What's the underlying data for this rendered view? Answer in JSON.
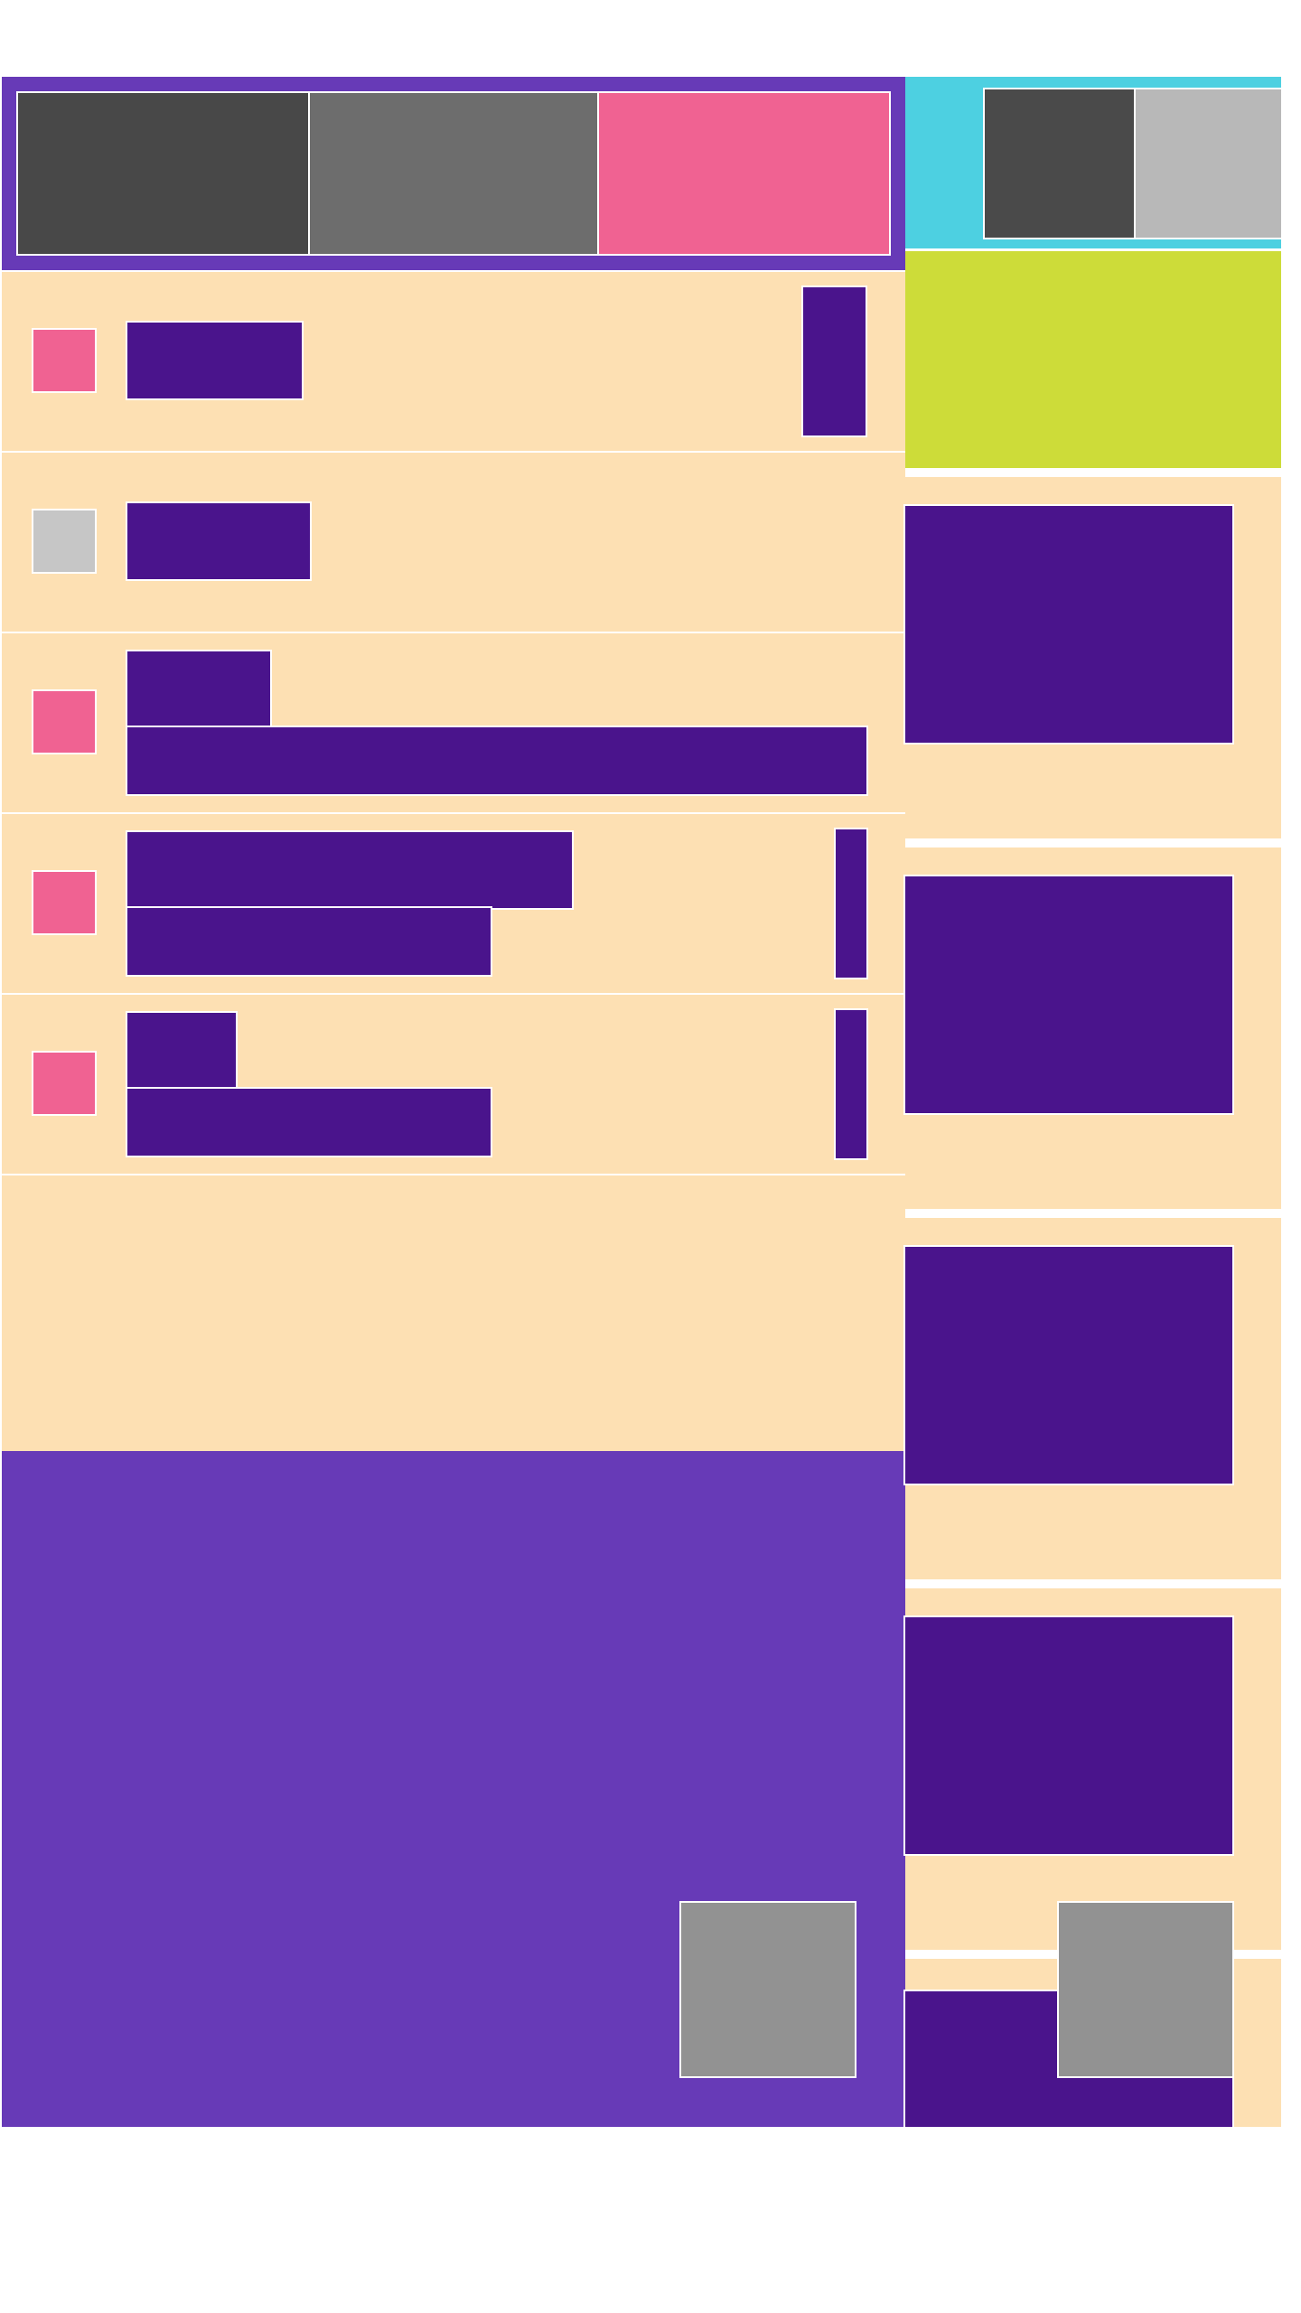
{
  "colors": {
    "background": "#ffffff",
    "header": "#673ab7",
    "header_accent": "#4dd0e1",
    "tab_dark": "#484848",
    "tab_mid": "#6d6d6d",
    "tab_active": "#f06292",
    "list_bg": "#fde0b3",
    "text_block": "#4a148c",
    "checkbox_checked": "#f06292",
    "checkbox_unchecked": "#c6c6c6",
    "lime_panel": "#cddc39",
    "fab": "#929292",
    "right_tab_dark": "#4a4a4a",
    "right_tab_light": "#b8b8b8"
  },
  "tabs": [
    {
      "state": "default"
    },
    {
      "state": "default"
    },
    {
      "state": "selected"
    }
  ],
  "list_items": [
    {
      "checked": true,
      "lines": 1,
      "has_trailing_bar": true
    },
    {
      "checked": false,
      "lines": 1,
      "has_trailing_bar": false
    },
    {
      "checked": true,
      "lines": 2,
      "has_trailing_bar": false
    },
    {
      "checked": true,
      "lines": 2,
      "has_trailing_bar": true
    },
    {
      "checked": true,
      "lines": 2,
      "has_trailing_bar": true
    }
  ],
  "side_cards": [
    {
      "kind": "card"
    },
    {
      "kind": "card"
    },
    {
      "kind": "card"
    },
    {
      "kind": "card"
    },
    {
      "kind": "card"
    }
  ],
  "icons": {
    "fab_left": "fab-square-icon",
    "fab_right": "fab-square-icon"
  }
}
